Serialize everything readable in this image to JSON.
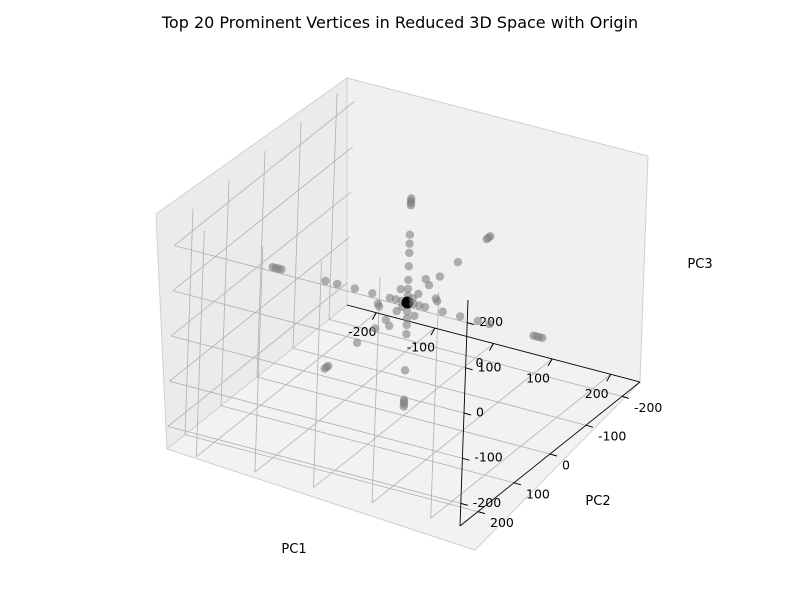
{
  "chart_data": {
    "type": "scatter",
    "subtype": "3d",
    "title": "Top 20 Prominent Vertices in Reduced 3D Space with Origin",
    "xlabel": "PC1",
    "ylabel": "PC2",
    "zlabel": "PC3",
    "xlim": [
      -250,
      250
    ],
    "ylim": [
      -250,
      250
    ],
    "zlim": [
      -250,
      250
    ],
    "xticks": [
      -200,
      -100,
      0,
      100,
      200
    ],
    "yticks": [
      -200,
      -100,
      0,
      100,
      200
    ],
    "zticks": [
      -200,
      -100,
      0,
      100,
      200
    ],
    "grid": true,
    "series": [
      {
        "color": "#808080",
        "points": [
          [
            -230,
            0,
            0
          ],
          [
            -225,
            0,
            0
          ],
          [
            -220,
            0,
            0
          ],
          [
            -215,
            0,
            0
          ],
          [
            -140,
            0,
            0
          ],
          [
            -120,
            0,
            0
          ],
          [
            -90,
            0,
            0
          ],
          [
            -60,
            0,
            0
          ],
          [
            -30,
            0,
            0
          ],
          [
            -20,
            0,
            0
          ],
          [
            -10,
            0,
            0
          ],
          [
            230,
            0,
            0
          ],
          [
            225,
            0,
            0
          ],
          [
            220,
            0,
            0
          ],
          [
            215,
            0,
            0
          ],
          [
            140,
            0,
            0
          ],
          [
            120,
            0,
            0
          ],
          [
            90,
            0,
            0
          ],
          [
            60,
            0,
            0
          ],
          [
            30,
            0,
            0
          ],
          [
            20,
            0,
            0
          ],
          [
            10,
            0,
            0
          ],
          [
            0,
            -230,
            0
          ],
          [
            0,
            -225,
            0
          ],
          [
            0,
            -220,
            0
          ],
          [
            0,
            -140,
            0
          ],
          [
            0,
            -90,
            0
          ],
          [
            0,
            -60,
            0
          ],
          [
            0,
            -30,
            0
          ],
          [
            0,
            -15,
            0
          ],
          [
            0,
            230,
            0
          ],
          [
            0,
            225,
            0
          ],
          [
            0,
            220,
            0
          ],
          [
            0,
            140,
            0
          ],
          [
            0,
            90,
            0
          ],
          [
            0,
            60,
            0
          ],
          [
            0,
            30,
            0
          ],
          [
            0,
            15,
            0
          ],
          [
            0,
            0,
            230
          ],
          [
            0,
            0,
            225
          ],
          [
            0,
            0,
            220
          ],
          [
            0,
            0,
            215
          ],
          [
            0,
            0,
            150
          ],
          [
            0,
            0,
            130
          ],
          [
            0,
            0,
            110
          ],
          [
            0,
            0,
            80
          ],
          [
            0,
            0,
            50
          ],
          [
            0,
            0,
            30
          ],
          [
            0,
            0,
            15
          ],
          [
            0,
            0,
            -230
          ],
          [
            0,
            0,
            -225
          ],
          [
            0,
            0,
            -220
          ],
          [
            0,
            0,
            -215
          ],
          [
            0,
            0,
            -150
          ],
          [
            0,
            0,
            -70
          ],
          [
            0,
            0,
            -50
          ],
          [
            0,
            0,
            -35
          ],
          [
            0,
            0,
            -20
          ],
          [
            30,
            30,
            0
          ],
          [
            -30,
            -30,
            0
          ],
          [
            30,
            -30,
            0
          ],
          [
            -30,
            30,
            0
          ],
          [
            50,
            0,
            20
          ],
          [
            -50,
            0,
            -20
          ],
          [
            0,
            50,
            -20
          ],
          [
            0,
            -50,
            20
          ]
        ]
      },
      {
        "color": "#000000",
        "points": [
          [
            0,
            0,
            0
          ]
        ]
      }
    ]
  }
}
